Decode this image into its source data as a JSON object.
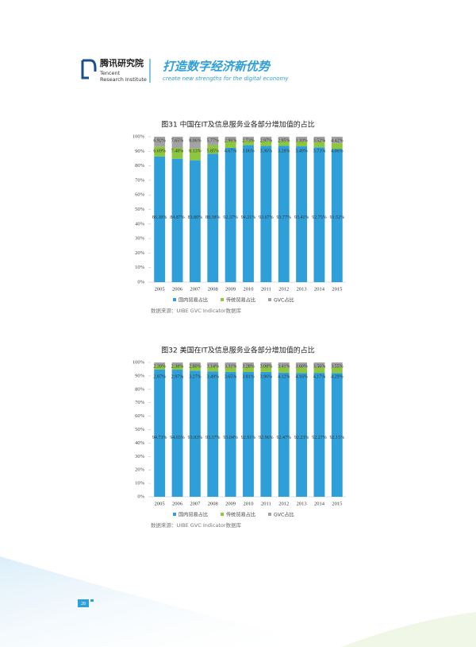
{
  "header": {
    "org_cn": "腾讯研究院",
    "org_en_1": "Tencent",
    "org_en_2": "Research Institute",
    "slogan": "打造数字经济新优势",
    "slogan_en": "create new strengths for the digital economy"
  },
  "chart_data": [
    {
      "type": "stacked-bar",
      "title": "图31  中国在IT及信息服务业各部分增加值的占比",
      "source": "数据来源：UIBE GVC Indicator数据库",
      "categories": [
        "2005",
        "2006",
        "2007",
        "2008",
        "2009",
        "2010",
        "2011",
        "2012",
        "2013",
        "2014",
        "2015"
      ],
      "ylim": [
        0,
        100
      ],
      "yticks": [
        {
          "value": 0,
          "label": "0%"
        },
        {
          "value": 10,
          "label": "10%"
        },
        {
          "value": 20,
          "label": "20%"
        },
        {
          "value": 30,
          "label": "30%"
        },
        {
          "value": 40,
          "label": "40%"
        },
        {
          "value": 50,
          "label": "50%"
        },
        {
          "value": 60,
          "label": "60%"
        },
        {
          "value": 70,
          "label": "70%"
        },
        {
          "value": 80,
          "label": "80%"
        },
        {
          "value": 90,
          "label": "90%"
        },
        {
          "value": 100,
          "label": "100%"
        }
      ],
      "series": [
        {
          "name": "国内贸易占比",
          "color": "#2e9fd8",
          "values": [
            86.39,
            84.87,
            83.8,
            88.38,
            92.37,
            94.21,
            93.67,
            93.77,
            93.41,
            92.75,
            91.52
          ],
          "value_labels": [
            "86.39%",
            "84.87%",
            "83.80%",
            "88.38%",
            "92.37%",
            "94.21%",
            "93.67%",
            "93.77%",
            "93.41%",
            "92.75%",
            "91.52%"
          ]
        },
        {
          "name": "传统贸易占比",
          "color": "#8dc63f",
          "values": [
            6.69,
            7.48,
            8.13,
            5.85,
            4.67,
            3.06,
            3.36,
            3.28,
            3.49,
            3.73,
            4.06
          ],
          "value_labels": [
            "6.69%",
            "7.48%",
            "8.13%",
            "5.85%",
            "4.67%",
            "3.06%",
            "3.36%",
            "3.28%",
            "3.49%",
            "3.73%",
            "4.06%"
          ]
        },
        {
          "name": "GVC占比",
          "color": "#a3a3a3",
          "values": [
            6.92,
            7.65,
            8.06,
            5.77,
            2.96,
            2.73,
            2.97,
            2.95,
            3.1,
            3.52,
            4.42
          ],
          "value_labels": [
            "6.92%",
            "7.65%",
            "8.06%",
            "5.77%",
            "2.96%",
            "2.73%",
            "2.97%",
            "2.95%",
            "3.10%",
            "3.52%",
            "4.42%"
          ]
        }
      ]
    },
    {
      "type": "stacked-bar",
      "title": "图32  美国在IT及信息服务业各部分增加值的占比",
      "source": "数据来源：UIBE GVC Indicator数据库",
      "categories": [
        "2005",
        "2006",
        "2007",
        "2008",
        "2009",
        "2010",
        "2011",
        "2012",
        "2013",
        "2014",
        "2015"
      ],
      "ylim": [
        0,
        100
      ],
      "yticks": [
        {
          "value": 0,
          "label": "0%"
        },
        {
          "value": 10,
          "label": "10%"
        },
        {
          "value": 20,
          "label": "20%"
        },
        {
          "value": 30,
          "label": "30%"
        },
        {
          "value": 40,
          "label": "40%"
        },
        {
          "value": 50,
          "label": "50%"
        },
        {
          "value": 60,
          "label": "60%"
        },
        {
          "value": 70,
          "label": "70%"
        },
        {
          "value": 80,
          "label": "80%"
        },
        {
          "value": 90,
          "label": "90%"
        },
        {
          "value": 100,
          "label": "100%"
        }
      ],
      "series": [
        {
          "name": "国内贸易占比",
          "color": "#2e9fd8",
          "values": [
            94.73,
            94.65,
            93.93,
            93.37,
            93.04,
            92.91,
            92.96,
            92.47,
            92.23,
            92.27,
            92.15
          ],
          "value_labels": [
            "94.73%",
            "94.65%",
            "93.93%",
            "93.37%",
            "93.04%",
            "92.91%",
            "92.96%",
            "92.47%",
            "92.23%",
            "92.27%",
            "92.15%"
          ]
        },
        {
          "name": "传统贸易占比",
          "color": "#8dc63f",
          "values": [
            2.87,
            2.97,
            3.27,
            3.49,
            3.65,
            3.81,
            3.96,
            4.12,
            4.16,
            4.17,
            4.29
          ],
          "value_labels": [
            "2.87%",
            "2.97%",
            "3.27%",
            "3.49%",
            "3.65%",
            "3.81%",
            "3.96%",
            "4.12%",
            "4.16%",
            "4.17%",
            "4.29%"
          ]
        },
        {
          "name": "GVC占比",
          "color": "#a3a3a3",
          "values": [
            2.39,
            2.38,
            2.8,
            3.14,
            3.31,
            3.28,
            3.08,
            3.41,
            3.6,
            3.56,
            3.55
          ],
          "value_labels": [
            "2.39%",
            "2.38%",
            "2.80%",
            "3.14%",
            "3.31%",
            "3.28%",
            "3.08%",
            "3.41%",
            "3.60%",
            "3.56%",
            "3.55%"
          ]
        }
      ]
    }
  ],
  "page_number": "28"
}
